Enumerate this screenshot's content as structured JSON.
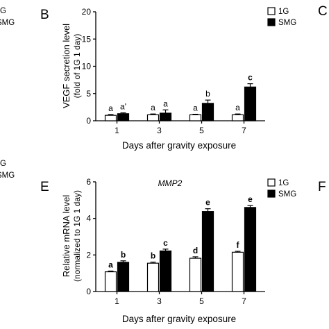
{
  "chart_data": [
    {
      "panel": "B",
      "type": "bar",
      "title": "",
      "ylabel_line1": "VEGF secretion level",
      "ylabel_line2": "(fold of 1G 1 day)",
      "xlabel": "Days after gravity exposure",
      "categories": [
        "1",
        "3",
        "5",
        "7"
      ],
      "ylim": [
        0,
        20
      ],
      "yticks": [
        "0",
        "5",
        "10",
        "15",
        "20"
      ],
      "legend": {
        "position": "top-right",
        "entries": [
          "1G",
          "SMG"
        ]
      },
      "series": [
        {
          "name": "1G",
          "color": "#ffffff",
          "values": [
            1.0,
            1.1,
            1.1,
            1.1
          ],
          "errors": [
            0.15,
            0.15,
            0.1,
            0.15
          ],
          "labels": [
            "a",
            "a",
            "a",
            "a"
          ]
        },
        {
          "name": "SMG",
          "color": "#000000",
          "values": [
            1.3,
            1.4,
            3.2,
            6.2
          ],
          "errors": [
            0.15,
            0.6,
            0.6,
            0.6
          ],
          "labels": [
            "a'",
            "a",
            "b",
            "c"
          ]
        }
      ]
    },
    {
      "panel": "E",
      "type": "bar",
      "title": "MMP2",
      "ylabel_line1": "Relative mRNA level",
      "ylabel_line2": "(normalized to 1G 1 day)",
      "xlabel": "Days after gravity exposure",
      "categories": [
        "1",
        "3",
        "5",
        "7"
      ],
      "ylim": [
        0,
        6
      ],
      "yticks": [
        "0",
        "2",
        "4",
        "6"
      ],
      "legend": {
        "position": "top-right",
        "entries": [
          "1G",
          "SMG"
        ]
      },
      "series": [
        {
          "name": "1G",
          "color": "#ffffff",
          "values": [
            1.08,
            1.55,
            1.82,
            2.15
          ],
          "errors": [
            0.04,
            0.06,
            0.08,
            0.05
          ],
          "labels": [
            "a",
            "b",
            "d",
            "f"
          ]
        },
        {
          "name": "SMG",
          "color": "#000000",
          "values": [
            1.6,
            2.22,
            4.38,
            4.6
          ],
          "errors": [
            0.08,
            0.1,
            0.15,
            0.1
          ],
          "labels": [
            "b",
            "c",
            "e",
            "e"
          ]
        }
      ]
    }
  ],
  "fragments": {
    "left_top_legend": [
      "G",
      "SMG"
    ],
    "left_bottom_legend": [
      "G",
      "SMG"
    ],
    "right_top_letter": "C",
    "right_bottom_letter": "F"
  }
}
